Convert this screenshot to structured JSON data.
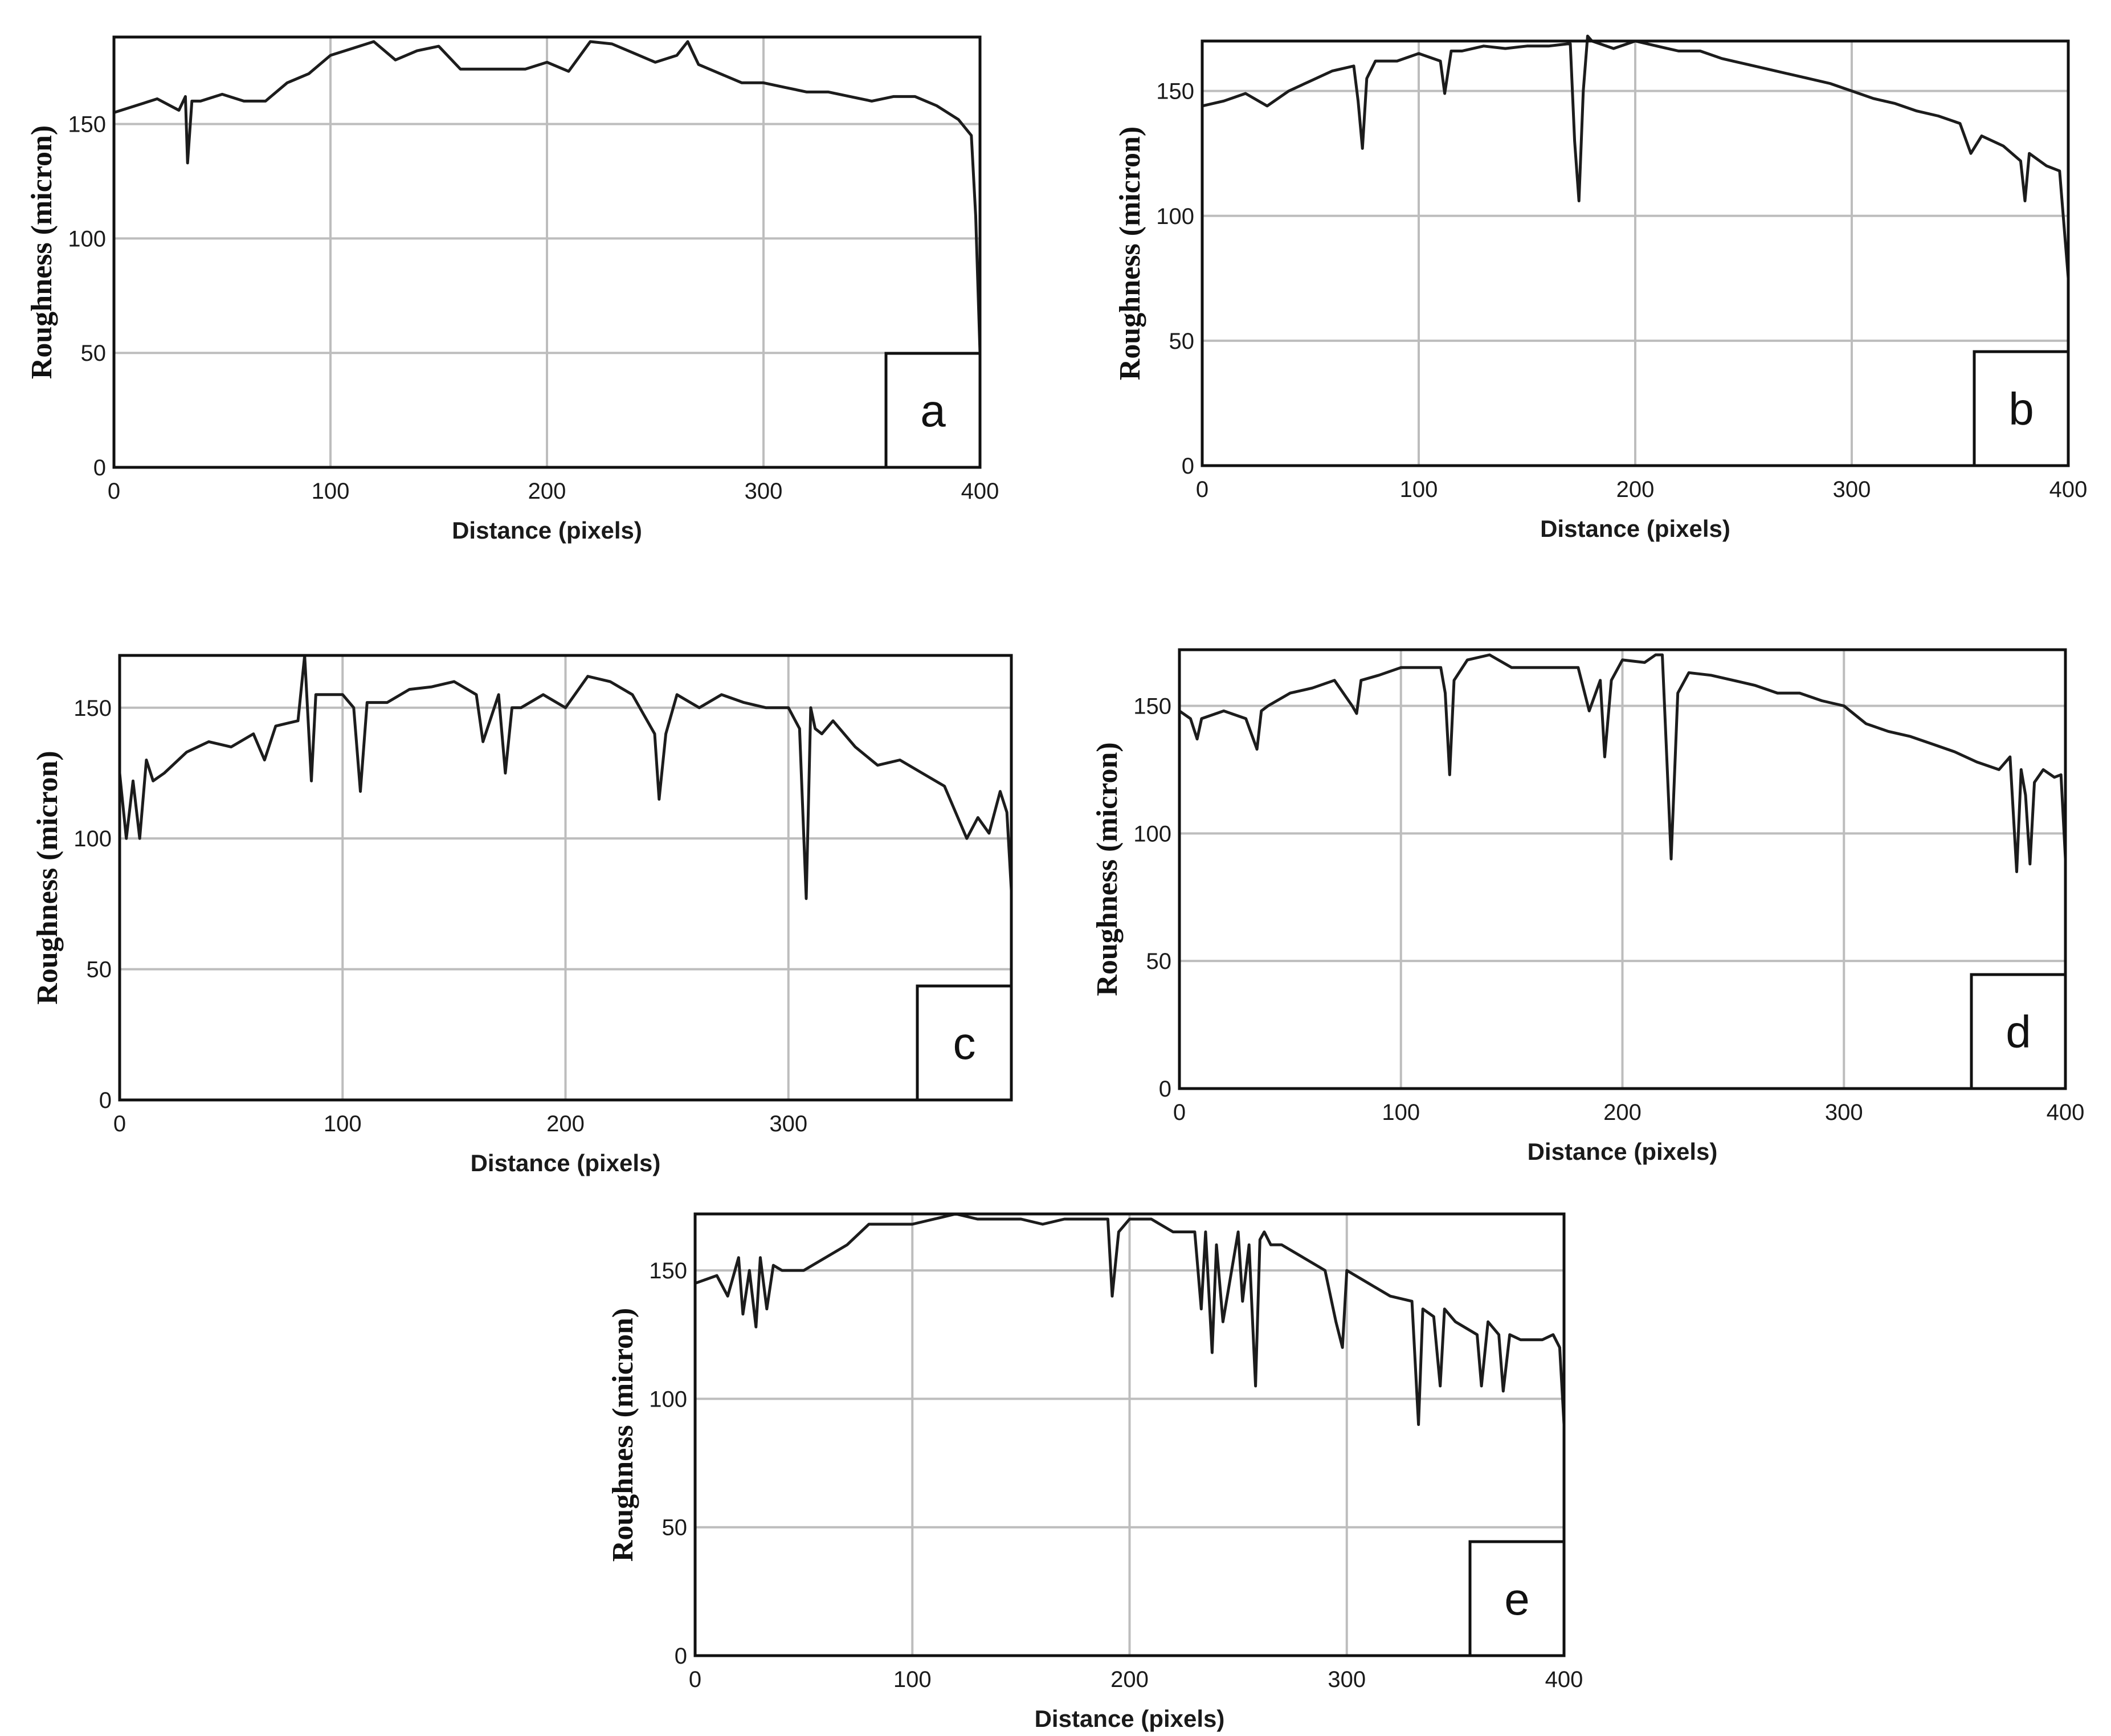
{
  "chart_data": [
    {
      "type": "line",
      "panel_label": "a",
      "xlabel": "Distance (pixels)",
      "ylabel": "Roughness (micron)",
      "xlim": [
        0,
        400
      ],
      "ylim": [
        0,
        188
      ],
      "xticks": [
        "0",
        "100",
        "200",
        "300",
        "400"
      ],
      "yticks": [
        "0",
        "50",
        "100",
        "150"
      ],
      "grid": true,
      "series": [
        {
          "x": [
            0,
            10,
            20,
            30,
            33,
            34,
            36,
            40,
            50,
            60,
            70,
            80,
            90,
            100,
            110,
            120,
            130,
            140,
            150,
            160,
            170,
            180,
            190,
            200,
            210,
            220,
            230,
            240,
            250,
            260,
            265,
            270,
            280,
            290,
            300,
            310,
            320,
            330,
            340,
            350,
            360,
            370,
            380,
            390,
            396,
            398,
            400
          ],
          "y": [
            155,
            158,
            161,
            156,
            162,
            133,
            160,
            160,
            163,
            160,
            160,
            168,
            172,
            180,
            183,
            186,
            178,
            182,
            184,
            174,
            174,
            174,
            174,
            177,
            173,
            186,
            185,
            181,
            177,
            180,
            186,
            176,
            172,
            168,
            168,
            166,
            164,
            164,
            162,
            160,
            162,
            162,
            158,
            152,
            145,
            110,
            50
          ]
        }
      ]
    },
    {
      "type": "line",
      "panel_label": "b",
      "xlabel": "Distance (pixels)",
      "ylabel": "Roughness (micron)",
      "xlim": [
        0,
        400
      ],
      "ylim": [
        0,
        170
      ],
      "xticks": [
        "0",
        "100",
        "200",
        "300",
        "400"
      ],
      "yticks": [
        "0",
        "50",
        "100",
        "150"
      ],
      "grid": true,
      "series": [
        {
          "x": [
            0,
            10,
            20,
            30,
            40,
            50,
            60,
            70,
            72,
            74,
            76,
            80,
            90,
            100,
            110,
            112,
            115,
            120,
            130,
            140,
            150,
            160,
            170,
            172,
            174,
            176,
            178,
            180,
            190,
            200,
            210,
            220,
            230,
            240,
            250,
            260,
            270,
            280,
            290,
            300,
            310,
            320,
            330,
            340,
            350,
            355,
            360,
            370,
            378,
            380,
            382,
            390,
            396,
            400
          ],
          "y": [
            144,
            146,
            149,
            144,
            150,
            154,
            158,
            160,
            146,
            127,
            155,
            162,
            162,
            165,
            162,
            149,
            166,
            166,
            168,
            167,
            168,
            168,
            169,
            130,
            106,
            150,
            172,
            170,
            167,
            170,
            168,
            166,
            166,
            163,
            161,
            159,
            157,
            155,
            153,
            150,
            147,
            145,
            142,
            140,
            137,
            125,
            132,
            128,
            122,
            106,
            125,
            120,
            118,
            75
          ]
        }
      ]
    },
    {
      "type": "line",
      "panel_label": "c",
      "xlabel": "Distance (pixels)",
      "ylabel": "Roughness (micron)",
      "xlim": [
        0,
        400
      ],
      "ylim": [
        0,
        170
      ],
      "xticks": [
        "0",
        "100",
        "200",
        "300"
      ],
      "yticks": [
        "0",
        "50",
        "100",
        "150"
      ],
      "grid": true,
      "series": [
        {
          "x": [
            0,
            3,
            6,
            9,
            12,
            15,
            20,
            30,
            40,
            50,
            60,
            65,
            70,
            80,
            83,
            86,
            88,
            90,
            100,
            105,
            108,
            111,
            120,
            130,
            140,
            150,
            160,
            163,
            170,
            173,
            176,
            180,
            190,
            200,
            210,
            220,
            230,
            240,
            242,
            245,
            250,
            260,
            270,
            280,
            290,
            300,
            305,
            308,
            310,
            312,
            315,
            320,
            330,
            340,
            350,
            360,
            370,
            375,
            380,
            385,
            390,
            395,
            398,
            400
          ],
          "y": [
            125,
            100,
            122,
            100,
            130,
            122,
            125,
            133,
            137,
            135,
            140,
            130,
            143,
            145,
            170,
            122,
            155,
            155,
            155,
            150,
            118,
            152,
            152,
            157,
            158,
            160,
            155,
            137,
            155,
            125,
            150,
            150,
            155,
            150,
            162,
            160,
            155,
            140,
            115,
            140,
            155,
            150,
            155,
            152,
            150,
            150,
            142,
            77,
            150,
            142,
            140,
            145,
            135,
            128,
            130,
            125,
            120,
            110,
            100,
            108,
            102,
            118,
            110,
            80
          ]
        }
      ]
    },
    {
      "type": "line",
      "panel_label": "d",
      "xlabel": "Distance (pixels)",
      "ylabel": "Roughness (micron)",
      "xlim": [
        0,
        400
      ],
      "ylim": [
        0,
        172
      ],
      "xticks": [
        "0",
        "100",
        "200",
        "300",
        "400"
      ],
      "yticks": [
        "0",
        "50",
        "100",
        "150"
      ],
      "grid": true,
      "series": [
        {
          "x": [
            0,
            5,
            8,
            10,
            20,
            30,
            35,
            37,
            40,
            50,
            60,
            70,
            78,
            80,
            82,
            90,
            100,
            110,
            118,
            120,
            122,
            124,
            130,
            140,
            150,
            160,
            170,
            180,
            185,
            190,
            192,
            195,
            200,
            210,
            215,
            218,
            220,
            222,
            225,
            230,
            240,
            250,
            260,
            270,
            280,
            290,
            300,
            310,
            320,
            330,
            340,
            350,
            360,
            370,
            375,
            378,
            380,
            382,
            384,
            386,
            390,
            395,
            398,
            400
          ],
          "y": [
            148,
            145,
            137,
            145,
            148,
            145,
            133,
            148,
            150,
            155,
            157,
            160,
            150,
            147,
            160,
            162,
            165,
            165,
            165,
            155,
            123,
            160,
            168,
            170,
            165,
            165,
            165,
            165,
            148,
            160,
            130,
            160,
            168,
            167,
            170,
            170,
            130,
            90,
            155,
            163,
            162,
            160,
            158,
            155,
            155,
            152,
            150,
            143,
            140,
            138,
            135,
            132,
            128,
            125,
            130,
            85,
            125,
            115,
            88,
            120,
            125,
            122,
            123,
            90
          ]
        }
      ]
    },
    {
      "type": "line",
      "panel_label": "e",
      "xlabel": "Distance (pixels)",
      "ylabel": "Roughness (micron)",
      "xlim": [
        0,
        400
      ],
      "ylim": [
        0,
        172
      ],
      "xticks": [
        "0",
        "100",
        "200",
        "300",
        "400"
      ],
      "yticks": [
        "0",
        "50",
        "100",
        "150"
      ],
      "grid": true,
      "series": [
        {
          "x": [
            0,
            10,
            15,
            20,
            22,
            25,
            28,
            30,
            33,
            36,
            40,
            50,
            60,
            70,
            80,
            90,
            100,
            110,
            120,
            130,
            140,
            150,
            160,
            170,
            180,
            190,
            192,
            195,
            200,
            210,
            220,
            230,
            233,
            235,
            238,
            240,
            243,
            250,
            252,
            255,
            258,
            260,
            262,
            265,
            270,
            280,
            290,
            295,
            298,
            300,
            310,
            320,
            330,
            333,
            335,
            340,
            343,
            345,
            350,
            360,
            362,
            365,
            370,
            372,
            375,
            380,
            390,
            395,
            398,
            400
          ],
          "y": [
            145,
            148,
            140,
            155,
            133,
            150,
            128,
            155,
            135,
            152,
            150,
            150,
            155,
            160,
            168,
            168,
            168,
            170,
            172,
            170,
            170,
            170,
            168,
            170,
            170,
            170,
            140,
            165,
            170,
            170,
            165,
            165,
            135,
            165,
            118,
            160,
            130,
            165,
            138,
            160,
            105,
            162,
            165,
            160,
            160,
            155,
            150,
            130,
            120,
            150,
            145,
            140,
            138,
            90,
            135,
            132,
            105,
            135,
            130,
            125,
            105,
            130,
            125,
            103,
            125,
            123,
            123,
            125,
            120,
            90
          ]
        }
      ]
    }
  ]
}
